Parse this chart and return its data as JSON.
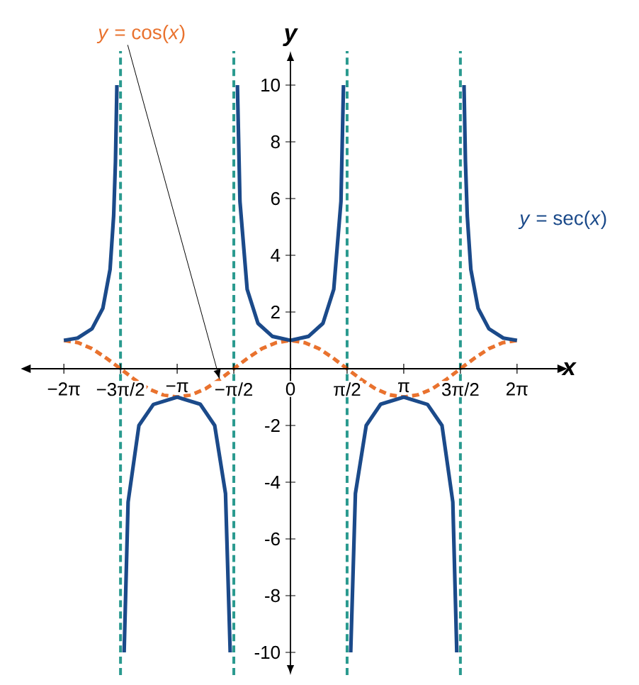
{
  "chart_data": {
    "type": "line",
    "xlabel": "x",
    "ylabel": "y",
    "xlim": [
      -7.2,
      7.4
    ],
    "ylim": [
      -10.8,
      11.2
    ],
    "xticks": [
      {
        "value": -6.28,
        "label": "−2π"
      },
      {
        "value": -4.71,
        "label": "−3π/2"
      },
      {
        "value": -3.14,
        "label": "−π"
      },
      {
        "value": -1.57,
        "label": "−π/2"
      },
      0,
      {
        "value": 1.57,
        "label": "π/2"
      },
      {
        "value": 3.14,
        "label": "π"
      },
      {
        "value": 4.71,
        "label": "3π/2"
      },
      {
        "value": 6.28,
        "label": "2π"
      }
    ],
    "yticks": [
      -10,
      -8,
      -6,
      -4,
      -2,
      2,
      4,
      6,
      8,
      10
    ],
    "series": [
      {
        "name": "*y* = cos(*x*)",
        "color": "#e9722e",
        "line_style": "dashed",
        "x": [
          -6.28,
          -5.89,
          -5.5,
          -5.11,
          -4.71,
          -4.32,
          -3.93,
          -3.53,
          -3.14,
          -2.75,
          -2.36,
          -1.96,
          -1.57,
          -1.18,
          -0.79,
          -0.39,
          0,
          0.39,
          0.79,
          1.18,
          1.57,
          1.96,
          2.36,
          2.75,
          3.14,
          3.53,
          3.93,
          4.32,
          4.71,
          5.11,
          5.5,
          5.89,
          6.28
        ],
        "values": [
          1,
          0.92,
          0.71,
          0.38,
          0,
          -0.38,
          -0.71,
          -0.92,
          -1,
          -0.92,
          -0.71,
          -0.38,
          0,
          0.38,
          0.71,
          0.92,
          1,
          0.92,
          0.71,
          0.38,
          0,
          -0.38,
          -0.71,
          -0.92,
          -1,
          -0.92,
          -0.71,
          -0.38,
          0,
          0.38,
          0.71,
          0.92,
          1
        ]
      },
      {
        "name": "*y* = sec(*x*)",
        "color": "#1b4a8a",
        "line_style": "solid",
        "x": [
          -6.28,
          -5.9,
          -5.5,
          -5.2,
          -5.0,
          -4.9,
          -4.85,
          -4.81,
          -4.71,
          -4.61,
          -4.5,
          -4.2,
          -3.8,
          -3.14,
          -2.5,
          -2.1,
          -1.8,
          -1.67,
          -1.57,
          -1.47,
          -1.4,
          -1.2,
          -0.9,
          -0.5,
          0,
          0.5,
          0.9,
          1.2,
          1.4,
          1.47,
          1.57,
          1.67,
          1.8,
          2.1,
          2.5,
          3.14,
          3.8,
          4.2,
          4.5,
          4.61,
          4.71,
          4.81,
          4.85,
          4.9,
          5.0,
          5.2,
          5.5,
          5.9,
          6.28
        ],
        "values": [
          1,
          1.08,
          1.41,
          2.13,
          3.5,
          5.4,
          7.3,
          10,
          null,
          -10,
          -4.7,
          -2.0,
          -1.26,
          -1,
          -1.25,
          -2.0,
          -4.4,
          -10,
          null,
          10,
          5.9,
          2.8,
          1.6,
          1.14,
          1,
          1.14,
          1.6,
          2.8,
          5.9,
          10,
          null,
          -10,
          -4.4,
          -2.0,
          -1.25,
          -1,
          -1.26,
          -2.0,
          -4.7,
          -10,
          null,
          10,
          7.3,
          5.4,
          3.5,
          2.13,
          1.41,
          1.08,
          1
        ]
      }
    ],
    "ref_lines": [
      {
        "axis": "x",
        "value": -4.71,
        "color": "#2a9a8f",
        "line_style": "dashed"
      },
      {
        "axis": "x",
        "value": -1.57,
        "color": "#2a9a8f",
        "line_style": "dashed"
      },
      {
        "axis": "x",
        "value": 1.57,
        "color": "#2a9a8f",
        "line_style": "dashed"
      },
      {
        "axis": "x",
        "value": 4.71,
        "color": "#2a9a8f",
        "line_style": "dashed"
      }
    ]
  }
}
